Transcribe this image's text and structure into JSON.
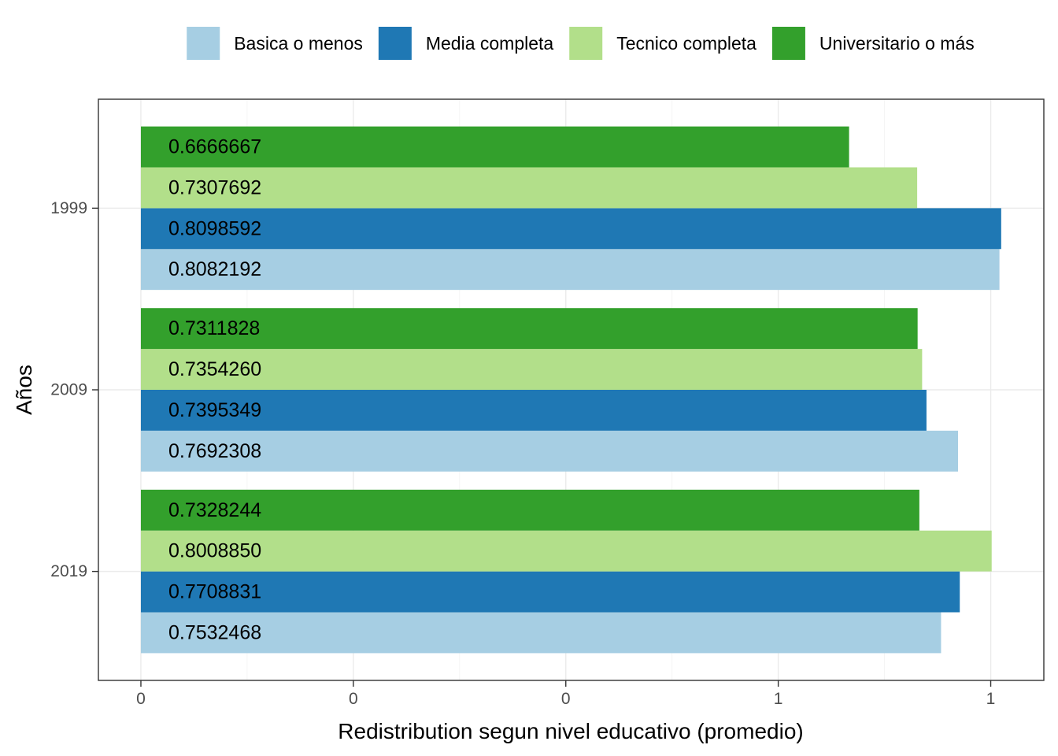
{
  "chart_data": {
    "type": "bar",
    "orientation": "horizontal",
    "title": "",
    "xlabel": "Redistribution segun nivel educativo (promedio)",
    "ylabel": "Años",
    "categories": [
      "1999",
      "2009",
      "2019"
    ],
    "x_tick_labels": [
      "0",
      "0",
      "0",
      "1",
      "1"
    ],
    "x_tick_values": [
      0.0,
      0.2,
      0.4,
      0.6,
      0.8
    ],
    "xlim": [
      -0.04,
      0.85
    ],
    "legend_position": "top",
    "grid": true,
    "series": [
      {
        "name": "Basica o menos",
        "color": "#A6CEE3",
        "values": [
          0.8082192,
          0.7692308,
          0.7532468
        ],
        "labels": [
          "0.8082192",
          "0.7692308",
          "0.7532468"
        ]
      },
      {
        "name": "Media completa",
        "color": "#1F78B4",
        "values": [
          0.8098592,
          0.7395349,
          0.7708831
        ],
        "labels": [
          "0.8098592",
          "0.7395349",
          "0.7708831"
        ]
      },
      {
        "name": "Tecnico completa",
        "color": "#B2DF8A",
        "values": [
          0.7307692,
          0.735426,
          0.800885
        ],
        "labels": [
          "0.7307692",
          "0.7354260",
          "0.8008850"
        ]
      },
      {
        "name": "Universitario o más",
        "color": "#33A02C",
        "values": [
          0.6666667,
          0.7311828,
          0.7328244
        ],
        "labels": [
          "0.6666667",
          "0.7311828",
          "0.7328244"
        ]
      }
    ]
  }
}
